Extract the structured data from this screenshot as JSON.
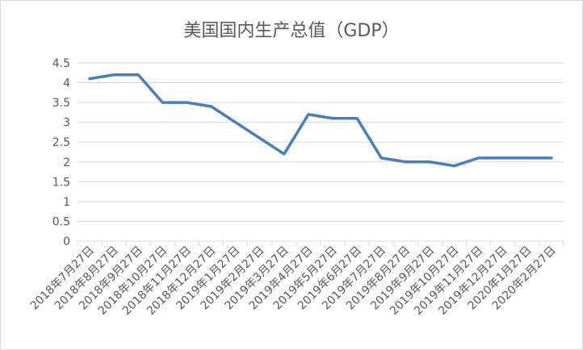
{
  "chart_data": {
    "type": "line",
    "title": "美国国内生产总值（GDP）",
    "xlabel": "",
    "ylabel": "",
    "ylim": [
      0,
      4.5
    ],
    "y_ticks": [
      "0",
      "0.5",
      "1",
      "1.5",
      "2",
      "2.5",
      "3",
      "3.5",
      "4",
      "4.5"
    ],
    "grid": true,
    "legend": "none",
    "categories": [
      "2018年7月27日",
      "2018年8月27日",
      "2018年9月27日",
      "2018年10月27日",
      "2018年11月27日",
      "2018年12月27日",
      "2019年1月27日",
      "2019年2月27日",
      "2019年3月27日",
      "2019年4月27日",
      "2019年5月27日",
      "2019年6月27日",
      "2019年7月27日",
      "2019年8月27日",
      "2019年9月27日",
      "2019年10月27日",
      "2019年11月27日",
      "2019年12月27日",
      "2020年1月27日",
      "2020年2月27日"
    ],
    "x_dates": [
      "2018-07-27",
      "2018-08-27",
      "2018-09-27",
      "2018-10-27",
      "2018-11-27",
      "2018-12-27",
      "2019-01-27",
      "2019-02-27",
      "2019-03-27",
      "2019-04-27",
      "2019-05-27",
      "2019-06-27",
      "2019-07-27",
      "2019-08-27",
      "2019-09-27",
      "2019-10-27",
      "2019-11-27",
      "2019-12-27",
      "2020-01-27",
      "2020-02-27"
    ],
    "series": [
      {
        "values": [
          4.1,
          4.2,
          4.2,
          3.5,
          3.5,
          3.4,
          3.0,
          2.6,
          2.2,
          3.2,
          3.1,
          3.1,
          2.1,
          2.0,
          2.0,
          1.9,
          2.1,
          2.1,
          2.1,
          2.1
        ]
      }
    ],
    "colors": {
      "line": "#4a7ebb",
      "grid": "#d9d9d9",
      "text": "#595959"
    }
  }
}
